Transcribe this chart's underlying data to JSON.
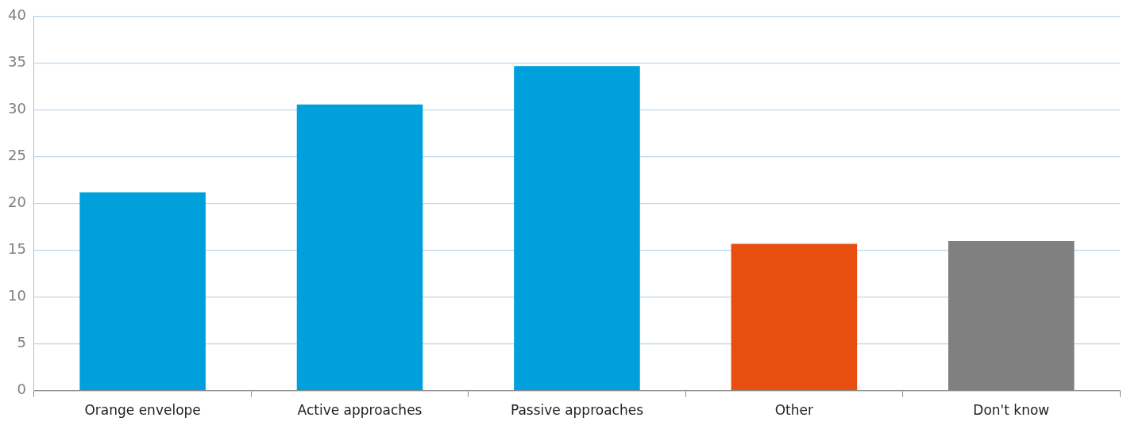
{
  "chart_data": {
    "type": "bar",
    "categories": [
      "Orange envelope",
      "Active approaches",
      "Passive approaches",
      "Other",
      "Don't know"
    ],
    "values": [
      21.2,
      30.6,
      34.7,
      15.7,
      16.0
    ],
    "colors": [
      "#00a0dc",
      "#00a0dc",
      "#00a0dc",
      "#e84e10",
      "#808080"
    ],
    "ylim": [
      0,
      40
    ],
    "yticks": [
      0,
      5,
      10,
      15,
      20,
      25,
      30,
      35,
      40
    ],
    "grid": "y",
    "legend": false
  }
}
